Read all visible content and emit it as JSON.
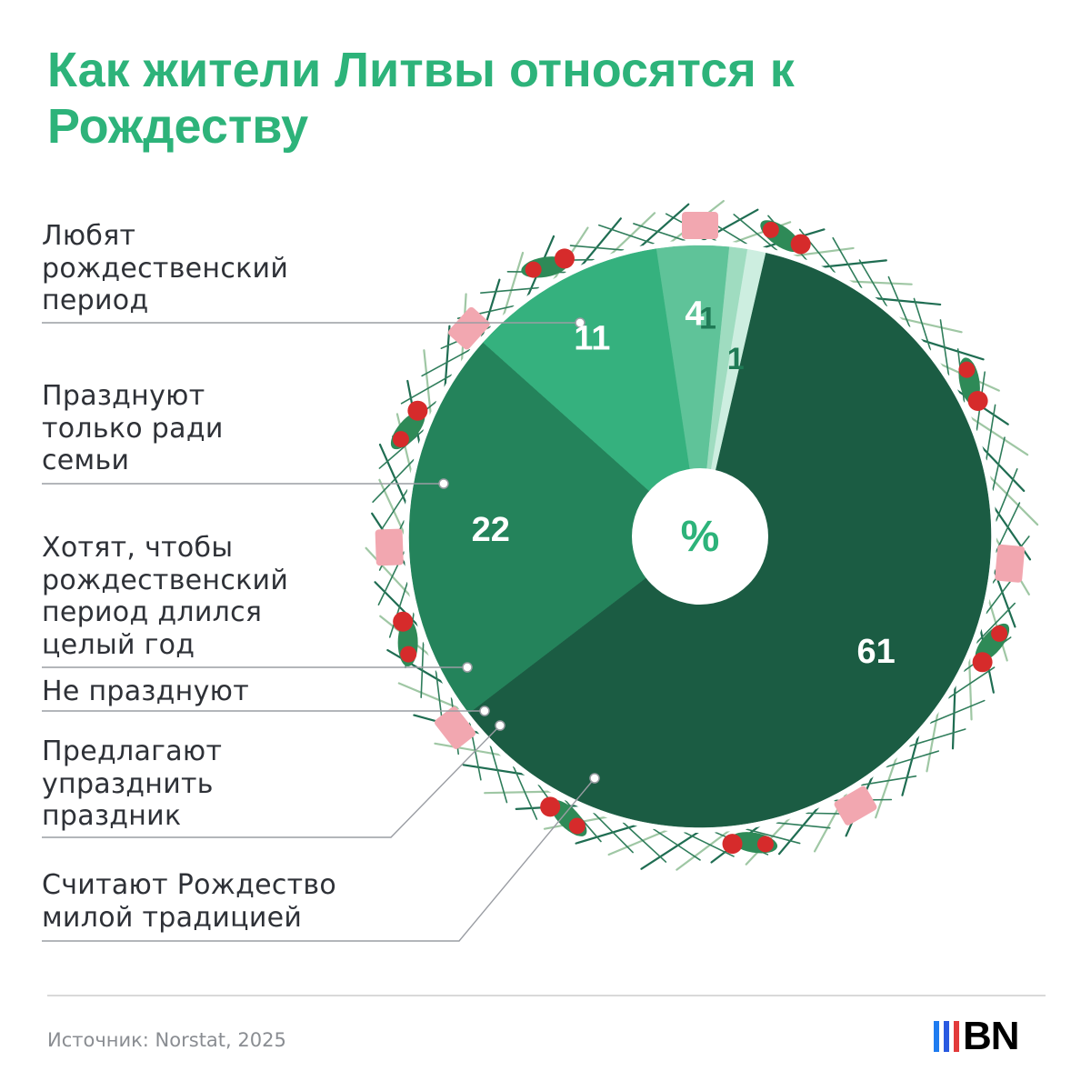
{
  "title": "Как жители Литвы относятся к Рождеству",
  "center_label": "%",
  "source": "Источник: Norstat, 2025",
  "logo": {
    "text": "BN",
    "bar_colors": [
      "#1f7cf0",
      "#2a5ae0",
      "#e23b3b"
    ]
  },
  "colors": {
    "accent": "#2db37a",
    "leader": "#9a9da3",
    "holly_dark": "#2e8a57",
    "berry": "#d62b2b",
    "pink": "#f2a7b0"
  },
  "chart_data": {
    "type": "pie",
    "unit": "%",
    "categories": [
      "Считают Рождество милой традицией",
      "Любят рождественский период",
      "Празднуют только ради семьи",
      "Хотят, чтобы рождественский период длился целый год",
      "Не празднуют",
      "Предлагают упразднить праздник"
    ],
    "values": [
      61,
      22,
      11,
      4,
      1,
      1
    ],
    "value_labels": [
      "61",
      "22",
      "11",
      "4",
      "1",
      "1"
    ],
    "colors": [
      "#1b5c43",
      "#24835b",
      "#35b17e",
      "#5fc399",
      "#9fdcc0",
      "#cdeee0"
    ],
    "legend": [
      {
        "text": "Любят\nрождественский\nпериод"
      },
      {
        "text": "Празднуют\nтолько ради\nсемьи"
      },
      {
        "text": "Хотят, чтобы\nрождественский\nпериод длился\nцелый год"
      },
      {
        "text": "Не празднуют"
      },
      {
        "text": "Предлагают\nупразднить\nпраздник"
      },
      {
        "text": "Считают Рождество\nмилой традицией"
      }
    ]
  }
}
